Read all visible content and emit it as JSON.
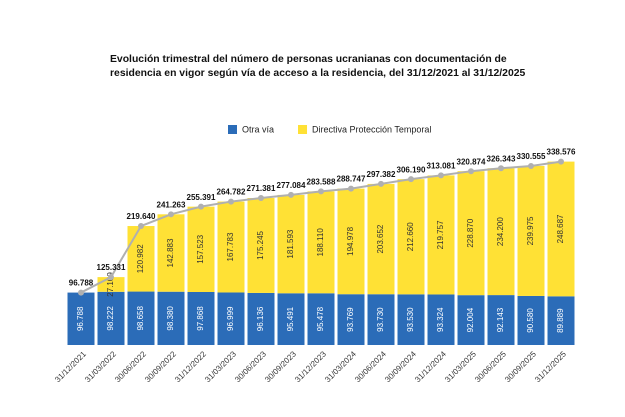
{
  "chart_data": {
    "type": "stacked_bar",
    "title": "Evolución trimestral del número de personas ucranianas con documentación de residencia en vigor según vía de acceso a la residencia, del 31/12/2021 al 31/12/2025",
    "categories": [
      "31/12/2021",
      "31/03/2022",
      "30/06/2022",
      "30/09/2022",
      "31/12/2022",
      "31/03/2023",
      "30/06/2023",
      "30/09/2023",
      "31/12/2023",
      "31/03/2024",
      "30/06/2024",
      "30/09/2024",
      "31/12/2024",
      "31/03/2025",
      "30/06/2025",
      "30/09/2025",
      "31/12/2025"
    ],
    "series": [
      {
        "name": "Otra vía",
        "color": "#2b6cb8",
        "values": [
          96788,
          98222,
          98658,
          98380,
          97868,
          96999,
          96136,
          95491,
          95478,
          93769,
          93730,
          93530,
          93324,
          92004,
          92143,
          90580,
          89889
        ],
        "value_labels": [
          "96.788",
          "98.222",
          "98.658",
          "98.380",
          "97.868",
          "96.999",
          "96.136",
          "95.491",
          "95.478",
          "93.769",
          "93.730",
          "93.530",
          "93.324",
          "92.004",
          "92.143",
          "90.580",
          "89.889"
        ]
      },
      {
        "name": "Directiva Protección Temporal",
        "color": "#ffe135",
        "values": [
          null,
          27109,
          120982,
          142883,
          157523,
          167783,
          175245,
          181593,
          188110,
          194978,
          203652,
          212660,
          219757,
          228870,
          234200,
          239975,
          248687
        ],
        "value_labels": [
          null,
          "27.109",
          "120.982",
          "142.883",
          "157.523",
          "167.783",
          "175.245",
          "181.593",
          "188.110",
          "194.978",
          "203.652",
          "212.660",
          "219.757",
          "228.870",
          "234.200",
          "239.975",
          "248.687"
        ]
      }
    ],
    "totals": {
      "color": "#b0b0b0",
      "values": [
        96788,
        125331,
        219640,
        241263,
        255391,
        264782,
        271381,
        277084,
        283588,
        288747,
        297382,
        306190,
        313081,
        320874,
        326343,
        330555,
        338576
      ],
      "value_labels": [
        "96.788",
        "125.331",
        "219.640",
        "241.263",
        "255.391",
        "264.782",
        "271.381",
        "277.084",
        "283.588",
        "288.747",
        "297.382",
        "306.190",
        "313.081",
        "320.874",
        "326.343",
        "330.555",
        "338.576"
      ]
    },
    "ylim": [
      0,
      360000
    ],
    "legend": "top"
  }
}
